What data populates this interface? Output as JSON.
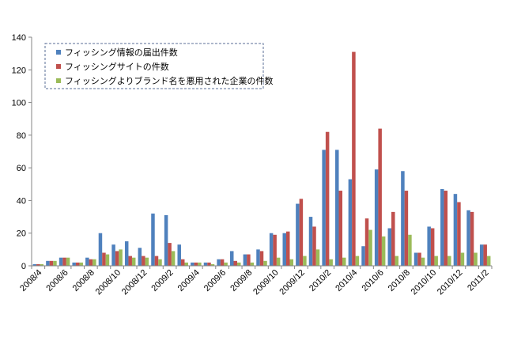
{
  "chart_data": {
    "type": "bar",
    "title": "",
    "xlabel": "",
    "ylabel": "",
    "ylim": [
      0,
      140
    ],
    "yticks": [
      0,
      20,
      40,
      60,
      80,
      100,
      120,
      140
    ],
    "grid": false,
    "legend_position": "top-left",
    "categories": [
      "2008/4",
      "2008/5",
      "2008/6",
      "2008/7",
      "2008/8",
      "2008/9",
      "2008/10",
      "2008/11",
      "2008/12",
      "2009/1",
      "2009/2",
      "2009/3",
      "2009/4",
      "2009/5",
      "2009/6",
      "2009/7",
      "2009/8",
      "2009/9",
      "2009/10",
      "2009/11",
      "2009/12",
      "2010/1",
      "2010/2",
      "2010/3",
      "2010/4",
      "2010/5",
      "2010/6",
      "2010/7",
      "2010/8",
      "2010/9",
      "2010/10",
      "2010/11",
      "2010/12",
      "2011/1",
      "2011/2"
    ],
    "tick_labels": [
      "2008/4",
      "",
      "2008/6",
      "",
      "2008/8",
      "",
      "2008/10",
      "",
      "2008/12",
      "",
      "2009/2",
      "",
      "2009/4",
      "",
      "2009/6",
      "",
      "2009/8",
      "",
      "2009/10",
      "",
      "2009/12",
      "",
      "2010/2",
      "",
      "2010/4",
      "",
      "2010/6",
      "",
      "2010/8",
      "",
      "2010/10",
      "",
      "2010/12",
      "",
      "2011/2"
    ],
    "series": [
      {
        "name": "フィッシング情報の届出件数",
        "color": "#4F81BD",
        "values": [
          1,
          3,
          5,
          2,
          5,
          20,
          13,
          15,
          11,
          32,
          31,
          13,
          2,
          2,
          4,
          9,
          7,
          10,
          20,
          20,
          38,
          30,
          71,
          71,
          53,
          12,
          59,
          23,
          58,
          8,
          24,
          47,
          44,
          34,
          13
        ]
      },
      {
        "name": "フィッシングサイトの件数",
        "color": "#C0504D",
        "values": [
          1,
          3,
          5,
          2,
          4,
          8,
          9,
          6,
          6,
          6,
          14,
          4,
          2,
          2,
          4,
          3,
          7,
          9,
          19,
          21,
          41,
          24,
          82,
          46,
          131,
          29,
          84,
          33,
          46,
          8,
          23,
          46,
          39,
          33,
          13
        ]
      },
      {
        "name": "フィッシングよりブランド名を悪用された企業の件数",
        "color": "#9BBB59",
        "values": [
          1,
          3,
          5,
          2,
          4,
          7,
          10,
          5,
          5,
          4,
          9,
          2,
          2,
          1,
          2,
          2,
          2,
          3,
          5,
          4,
          6,
          10,
          4,
          5,
          6,
          22,
          18,
          6,
          19,
          5,
          6,
          6,
          8,
          8,
          6
        ]
      }
    ]
  }
}
